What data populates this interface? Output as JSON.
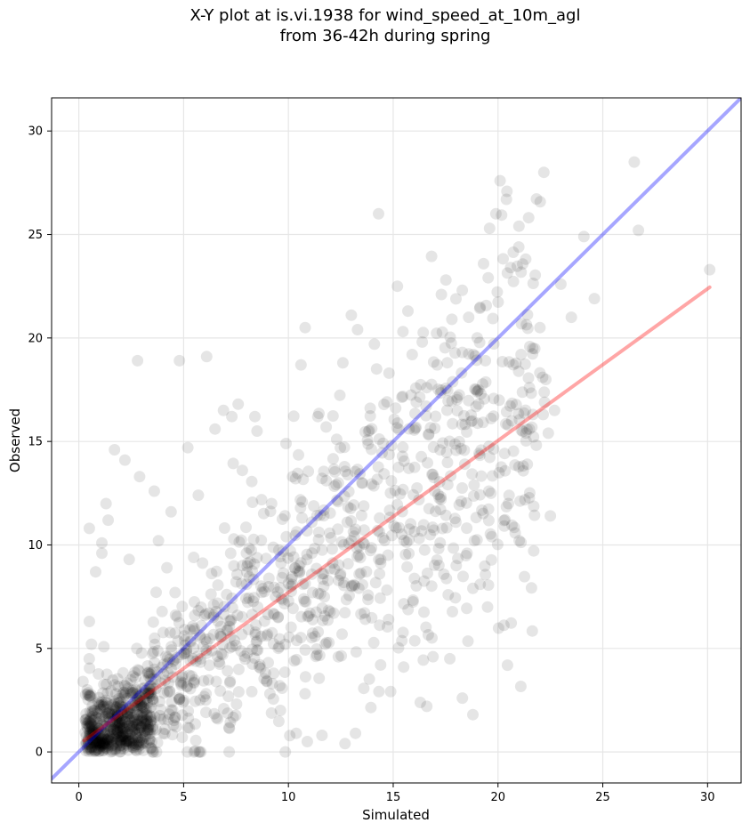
{
  "chart_data": {
    "type": "scatter",
    "title_line1": "X-Y plot at is.vi.1938 for wind_speed_at_10m_agl",
    "title_line2": "from 36-42h during spring",
    "xlabel": "Simulated",
    "ylabel": "Observed",
    "xlim": [
      -1.3,
      31.6
    ],
    "ylim": [
      -1.5,
      31.6
    ],
    "xticks": [
      0,
      5,
      10,
      15,
      20,
      25,
      30
    ],
    "yticks": [
      0,
      5,
      10,
      15,
      20,
      25,
      30
    ],
    "grid": true,
    "point_color": "#000000",
    "point_alpha": 0.1,
    "reference_line": {
      "name": "1:1 line",
      "color": "#0000ff",
      "slope": 1,
      "intercept": 0
    },
    "fit_line": {
      "name": "regression fit",
      "color": "#ff0000",
      "x": [
        0.25,
        30.1
      ],
      "y": [
        0.55,
        22.45
      ]
    },
    "points": [
      [
        0.2,
        3.4
      ],
      [
        0.5,
        10.8
      ],
      [
        0.5,
        6.3
      ],
      [
        0.6,
        5.2
      ],
      [
        0.8,
        8.7
      ],
      [
        1.1,
        10.1
      ],
      [
        1.1,
        9.6
      ],
      [
        1.3,
        12.0
      ],
      [
        1.4,
        11.2
      ],
      [
        1.7,
        14.6
      ],
      [
        2.2,
        14.1
      ],
      [
        2.4,
        9.3
      ],
      [
        2.8,
        18.9
      ],
      [
        2.9,
        13.3
      ],
      [
        3.6,
        12.6
      ],
      [
        3.8,
        10.2
      ],
      [
        4.2,
        8.9
      ],
      [
        4.4,
        11.6
      ],
      [
        4.8,
        18.9
      ],
      [
        5.2,
        14.7
      ],
      [
        5.7,
        12.4
      ],
      [
        6.1,
        19.1
      ],
      [
        6.5,
        15.6
      ],
      [
        6.9,
        16.5
      ],
      [
        7.3,
        16.2
      ],
      [
        7.6,
        16.8
      ],
      [
        7.8,
        13.6
      ],
      [
        8.4,
        16.2
      ],
      [
        8.5,
        15.5
      ],
      [
        9.2,
        12.0
      ],
      [
        9.9,
        10.4
      ],
      [
        10.2,
        13.3
      ],
      [
        10.6,
        18.7
      ],
      [
        10.8,
        20.5
      ],
      [
        11.4,
        16.2
      ],
      [
        11.8,
        15.7
      ],
      [
        12.3,
        15.1
      ],
      [
        12.6,
        18.8
      ],
      [
        13.0,
        21.1
      ],
      [
        13.3,
        20.4
      ],
      [
        13.9,
        16.6
      ],
      [
        14.1,
        19.7
      ],
      [
        14.3,
        26.0
      ],
      [
        14.8,
        18.3
      ],
      [
        15.2,
        22.5
      ],
      [
        15.7,
        21.3
      ],
      [
        16.1,
        16.9
      ],
      [
        16.6,
        17.6
      ],
      [
        17.1,
        18.7
      ],
      [
        17.3,
        22.1
      ],
      [
        17.8,
        20.9
      ],
      [
        18.3,
        19.3
      ],
      [
        18.6,
        21.0
      ],
      [
        19.0,
        17.4
      ],
      [
        19.4,
        18.9
      ],
      [
        19.6,
        25.3
      ],
      [
        19.9,
        26.0
      ],
      [
        20.1,
        27.6
      ],
      [
        20.4,
        26.7
      ],
      [
        20.6,
        23.4
      ],
      [
        21.0,
        25.4
      ],
      [
        21.1,
        19.2
      ],
      [
        21.5,
        17.6
      ],
      [
        22.0,
        20.5
      ],
      [
        22.4,
        15.4
      ],
      [
        22.5,
        11.4
      ],
      [
        22.7,
        16.5
      ],
      [
        23.0,
        22.6
      ],
      [
        23.5,
        21.0
      ],
      [
        24.1,
        24.9
      ],
      [
        24.6,
        21.9
      ],
      [
        26.5,
        28.5
      ],
      [
        26.7,
        25.2
      ],
      [
        30.1,
        23.3
      ],
      [
        18.8,
        1.8
      ],
      [
        18.3,
        2.6
      ],
      [
        17.7,
        4.5
      ],
      [
        16.6,
        2.2
      ],
      [
        15.5,
        4.1
      ],
      [
        14.4,
        4.2
      ],
      [
        13.2,
        0.9
      ],
      [
        12.7,
        0.4
      ],
      [
        11.6,
        0.8
      ],
      [
        10.9,
        0.5
      ],
      [
        16.9,
        4.6
      ],
      [
        18.8,
        7.9
      ],
      [
        19.7,
        10.4
      ],
      [
        20.5,
        12.0
      ],
      [
        21.4,
        13.9
      ],
      [
        19.5,
        7.0
      ]
    ],
    "cloud_seed": 1938,
    "cloud_count": 1500
  }
}
